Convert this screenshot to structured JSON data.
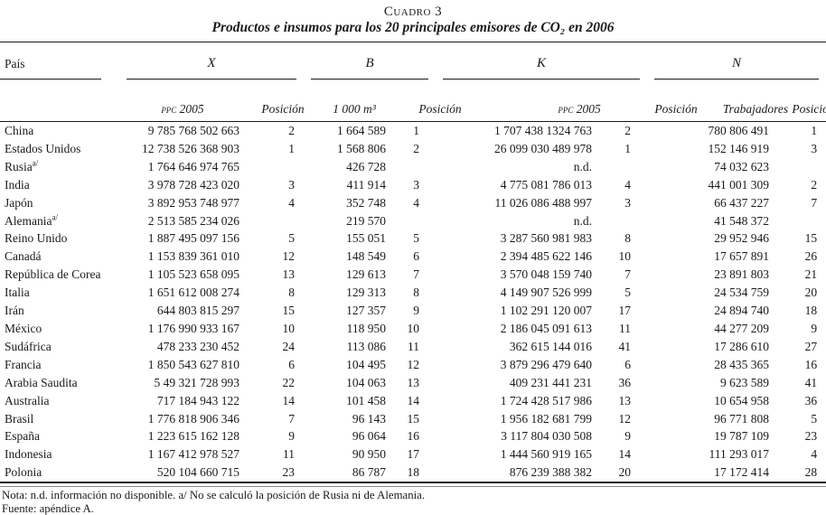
{
  "colors": {
    "text": "#1a1a1a",
    "background": "#ffffff"
  },
  "title": {
    "caption": "Cuadro 3",
    "subtitle": "Productos e insumos para los 20 principales emisores de CO₂ en 2006"
  },
  "table": {
    "groups": {
      "pais": "País",
      "x": "X",
      "b": "B",
      "k": "K",
      "n": "N"
    },
    "sub": {
      "x_ppc": "PPC 2005",
      "x_pos": "Posición",
      "b_vol": "1 000 m³",
      "b_pos": "Posición",
      "k_ppc": "PPC 2005",
      "k_pos": "Posición",
      "n_lab": "Trabajadores",
      "n_pos": "Posición"
    },
    "rows": [
      {
        "country": "China",
        "note": "",
        "x": "9 785 768 502 663",
        "x_pos": "2",
        "b": "1 664 589",
        "b_pos": "1",
        "k": "1 707 438 1324 763",
        "k_pos": "2",
        "n": "780 806 491",
        "n_pos": "1"
      },
      {
        "country": "Estados Unidos",
        "note": "",
        "x": "12 738 526 368 903",
        "x_pos": "1",
        "b": "1 568 806",
        "b_pos": "2",
        "k": "26 099 030 489 978",
        "k_pos": "1",
        "n": "152 146 919",
        "n_pos": "3"
      },
      {
        "country": "Rusia",
        "note": "a/",
        "x": "1 764 646 974 765",
        "x_pos": "",
        "b": "426 728",
        "b_pos": "",
        "k": "n.d.",
        "k_pos": "",
        "n": "74 032 623",
        "n_pos": ""
      },
      {
        "country": "India",
        "note": "",
        "x": "3 978 728 423 020",
        "x_pos": "3",
        "b": "411 914",
        "b_pos": "3",
        "k": "4 775 081 786 013",
        "k_pos": "4",
        "n": "441 001 309",
        "n_pos": "2"
      },
      {
        "country": "Japón",
        "note": "",
        "x": "3 892 953 748 977",
        "x_pos": "4",
        "b": "352 748",
        "b_pos": "4",
        "k": "11 026 086 488 997",
        "k_pos": "3",
        "n": "66 437 227",
        "n_pos": "7"
      },
      {
        "country": "Alemania",
        "note": "a/",
        "x": "2 513 585 234 026",
        "x_pos": "",
        "b": "219 570",
        "b_pos": "",
        "k": "n.d.",
        "k_pos": "",
        "n": "41 548 372",
        "n_pos": ""
      },
      {
        "country": "Reino Unido",
        "note": "",
        "x": "1 887 495 097 156",
        "x_pos": "5",
        "b": "155 051",
        "b_pos": "5",
        "k": "3 287 560 981 983",
        "k_pos": "8",
        "n": "29 952 946",
        "n_pos": "15"
      },
      {
        "country": "Canadá",
        "note": "",
        "x": "1 153 839 361 010",
        "x_pos": "12",
        "b": "148 549",
        "b_pos": "6",
        "k": "2 394 485 622 146",
        "k_pos": "10",
        "n": "17 657 891",
        "n_pos": "26"
      },
      {
        "country": "República de Corea",
        "note": "",
        "x": "1 105 523 658 095",
        "x_pos": "13",
        "b": "129 613",
        "b_pos": "7",
        "k": "3 570 048 159 740",
        "k_pos": "7",
        "n": "23 891 803",
        "n_pos": "21"
      },
      {
        "country": "Italia",
        "note": "",
        "x": "1 651 612 008 274",
        "x_pos": "8",
        "b": "129 313",
        "b_pos": "8",
        "k": "4 149 907 526 999",
        "k_pos": "5",
        "n": "24 534 759",
        "n_pos": "20"
      },
      {
        "country": "Irán",
        "note": "",
        "x": "644 803 815 297",
        "x_pos": "15",
        "b": "127 357",
        "b_pos": "9",
        "k": "1 102 291 120 007",
        "k_pos": "17",
        "n": "24 894 740",
        "n_pos": "18"
      },
      {
        "country": "México",
        "note": "",
        "x": "1 176 990 933 167",
        "x_pos": "10",
        "b": "118 950",
        "b_pos": "10",
        "k": "2 186 045 091 613",
        "k_pos": "11",
        "n": "44 277 209",
        "n_pos": "9"
      },
      {
        "country": "Sudáfrica",
        "note": "",
        "x": "478 233 230 452",
        "x_pos": "24",
        "b": "113 086",
        "b_pos": "11",
        "k": "362 615 144 016",
        "k_pos": "41",
        "n": "17 286 610",
        "n_pos": "27"
      },
      {
        "country": "Francia",
        "note": "",
        "x": "1 850 543 627 810",
        "x_pos": "6",
        "b": "104 495",
        "b_pos": "12",
        "k": "3 879 296 479 640",
        "k_pos": "6",
        "n": "28 435 365",
        "n_pos": "16"
      },
      {
        "country": "Arabia Saudita",
        "note": "",
        "x": "5 49 321 728 993",
        "x_pos": "22",
        "b": "104 063",
        "b_pos": "13",
        "k": "409 231 441 231",
        "k_pos": "36",
        "n": "9 623 589",
        "n_pos": "41"
      },
      {
        "country": "Australia",
        "note": "",
        "x": "717 184 943 122",
        "x_pos": "14",
        "b": "101 458",
        "b_pos": "14",
        "k": "1 724 428 517 986",
        "k_pos": "13",
        "n": "10 654 958",
        "n_pos": "36"
      },
      {
        "country": "Brasil",
        "note": "",
        "x": "1 776 818 906 346",
        "x_pos": "7",
        "b": "96 143",
        "b_pos": "15",
        "k": "1 956 182 681 799",
        "k_pos": "12",
        "n": "96 771 808",
        "n_pos": "5"
      },
      {
        "country": "España",
        "note": "",
        "x": "1 223 615 162 128",
        "x_pos": "9",
        "b": "96 064",
        "b_pos": "16",
        "k": "3 117 804 030 508",
        "k_pos": "9",
        "n": "19 787 109",
        "n_pos": "23"
      },
      {
        "country": "Indonesia",
        "note": "",
        "x": "1 167 412 978 527",
        "x_pos": "11",
        "b": "90 950",
        "b_pos": "17",
        "k": "1 444 560 919 165",
        "k_pos": "14",
        "n": "111 293 017",
        "n_pos": "4"
      },
      {
        "country": "Polonia",
        "note": "",
        "x": "520 104 660 715",
        "x_pos": "23",
        "b": "86 787",
        "b_pos": "18",
        "k": "876 239 388 382",
        "k_pos": "20",
        "n": "17 172 414",
        "n_pos": "28"
      }
    ]
  },
  "notes": {
    "line1": "Nota: n.d. información no disponible. a/ No se calculó la posición de Rusia ni de Alemania.",
    "line2": "Fuente: apéndice A."
  }
}
